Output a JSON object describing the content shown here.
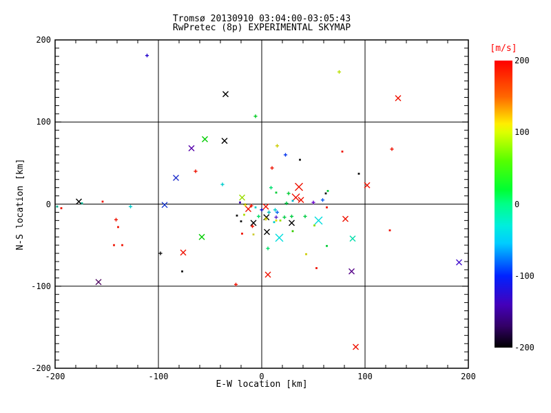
{
  "title": {
    "line1": "Tromsø 20130910 03:04:00-03:05:43",
    "line2": "RwPretec (8p) EXPERIMENTAL SKYMAP"
  },
  "axes": {
    "xlabel": "E-W location [km]",
    "ylabel": "N-S location [km]",
    "xticks": [
      {
        "v": -200,
        "label": "-200"
      },
      {
        "v": -100,
        "label": "-100"
      },
      {
        "v": 0,
        "label": "0"
      },
      {
        "v": 100,
        "label": "100"
      },
      {
        "v": 200,
        "label": "200"
      }
    ],
    "yticks": [
      {
        "v": 200,
        "label": "200"
      },
      {
        "v": 100,
        "label": "100"
      },
      {
        "v": 0,
        "label": "0"
      },
      {
        "v": -100,
        "label": "-100"
      },
      {
        "v": -200,
        "label": "-200"
      }
    ]
  },
  "colorbar": {
    "label": "[m/s]",
    "label_color": "#ff0000",
    "min": -200,
    "max": 200,
    "ticks": [
      {
        "v": 200,
        "label": "200"
      },
      {
        "v": 100,
        "label": "100"
      },
      {
        "v": 0,
        "label": "0"
      },
      {
        "v": -100,
        "label": "-100"
      },
      {
        "v": -200,
        "label": "-200"
      }
    ],
    "gradient": [
      {
        "v": 200,
        "color": "#ff0000"
      },
      {
        "v": 150,
        "color": "#ff6600"
      },
      {
        "v": 112,
        "color": "#ffee00"
      },
      {
        "v": 100,
        "color": "#ddff00"
      },
      {
        "v": 60,
        "color": "#55ff00"
      },
      {
        "v": 20,
        "color": "#00ff33"
      },
      {
        "v": 0,
        "color": "#00ff88"
      },
      {
        "v": -30,
        "color": "#00eedd"
      },
      {
        "v": -55,
        "color": "#00ccff"
      },
      {
        "v": -100,
        "color": "#0022ff"
      },
      {
        "v": -140,
        "color": "#4400bb"
      },
      {
        "v": -170,
        "color": "#330066"
      },
      {
        "v": -200,
        "color": "#000000"
      }
    ]
  },
  "chart_data": {
    "type": "scatter",
    "title": "Tromsø 20130910 03:04:00-03:05:43",
    "subtitle": "RwPretec (8p) EXPERIMENTAL SKYMAP",
    "xlabel": "E-W location [km]",
    "ylabel": "N-S location [km]",
    "xlim": [
      -200,
      200
    ],
    "ylim": [
      -200,
      200
    ],
    "grid_major_lines": [
      -100,
      0,
      100
    ],
    "colorbar_label": "[m/s]",
    "colorbar_range": [
      -200,
      200
    ],
    "point_format": [
      "x_km",
      "y_km",
      "marker(X=big cross,x=cross,+=plus,.=dot)",
      "color",
      "velocity_m_s"
    ],
    "points": [
      [
        -111,
        181,
        "+",
        "#2200cc",
        -130
      ],
      [
        132,
        129,
        "x",
        "#ee1100",
        190
      ],
      [
        75,
        161,
        "+",
        "#b8e000",
        90
      ],
      [
        -35,
        134,
        "x",
        "#000000",
        -200
      ],
      [
        -6,
        107,
        "+",
        "#00cc22",
        40
      ],
      [
        -55,
        79,
        "x",
        "#00cc00",
        45
      ],
      [
        -36,
        77,
        "x",
        "#000000",
        -200
      ],
      [
        -68,
        68,
        "x",
        "#5500aa",
        -150
      ],
      [
        15,
        71,
        "+",
        "#cccc00",
        100
      ],
      [
        -64,
        40,
        "+",
        "#ee1100",
        190
      ],
      [
        -83,
        32,
        "x",
        "#2233cc",
        -110
      ],
      [
        78,
        64,
        ".",
        "#ee1100",
        190
      ],
      [
        126,
        67,
        "+",
        "#ee1100",
        190
      ],
      [
        94,
        37,
        ".",
        "#111111",
        -195
      ],
      [
        102,
        23,
        "x",
        "#ee1100",
        190
      ],
      [
        23,
        60,
        "+",
        "#0033ee",
        -110
      ],
      [
        37,
        54,
        ".",
        "#111111",
        -195
      ],
      [
        10,
        44,
        "+",
        "#ee1100",
        190
      ],
      [
        36,
        21,
        "X",
        "#ee1100",
        190
      ],
      [
        -38,
        24,
        "+",
        "#00cccc",
        -40
      ],
      [
        62,
        13,
        ".",
        "#111111",
        -195
      ],
      [
        64,
        16,
        ".",
        "#00cc33",
        30
      ],
      [
        -19,
        8,
        "x",
        "#99dd00",
        80
      ],
      [
        -21,
        2,
        ".",
        "#3300aa",
        -150
      ],
      [
        -16,
        -1,
        "+",
        "#dddd00",
        100
      ],
      [
        -10,
        -2,
        "+",
        "#ee1100",
        190
      ],
      [
        -13,
        -6,
        "x",
        "#ee1100",
        190
      ],
      [
        9,
        20,
        "+",
        "#00e070",
        15
      ],
      [
        14,
        14,
        ".",
        "#00cc33",
        30
      ],
      [
        26,
        13,
        "+",
        "#00cc33",
        30
      ],
      [
        33,
        8,
        "X",
        "#ee1100",
        190
      ],
      [
        38,
        5,
        "x",
        "#ee1100",
        190
      ],
      [
        30,
        4,
        ".",
        "#00bbcc",
        -35
      ],
      [
        24,
        1,
        "+",
        "#00cc44",
        25
      ],
      [
        50,
        2,
        "+",
        "#6600cc",
        -155
      ],
      [
        59,
        5,
        "+",
        "#0055ee",
        -95
      ],
      [
        63,
        -4,
        ".",
        "#ee1100",
        190
      ],
      [
        4,
        -3,
        "x",
        "#ee1100",
        190
      ],
      [
        0,
        -7,
        "+",
        "#0000bb",
        -140
      ],
      [
        13,
        -7,
        "+",
        "#00cccc",
        -40
      ],
      [
        -6,
        -4,
        ".",
        "#00cccc",
        -40
      ],
      [
        7,
        -10,
        "+",
        "#00bbbb",
        -45
      ],
      [
        15,
        -10,
        "+",
        "#0066ee",
        -90
      ],
      [
        -3,
        -15,
        "+",
        "#00dd66",
        15
      ],
      [
        4.5,
        -16,
        "x",
        "#000000",
        -200
      ],
      [
        4,
        -18,
        "+",
        "#cccc00",
        100
      ],
      [
        14,
        -16,
        "+",
        "#5522cc",
        -145
      ],
      [
        22,
        -16,
        "+",
        "#00cc44",
        25
      ],
      [
        29,
        -15,
        "+",
        "#00cc44",
        25
      ],
      [
        42,
        -15,
        "+",
        "#00cc44",
        25
      ],
      [
        -24,
        -14,
        ".",
        "#111111",
        -195
      ],
      [
        -20,
        -21,
        ".",
        "#111111",
        -195
      ],
      [
        -17,
        -13,
        ".",
        "#aadd00",
        75
      ],
      [
        12,
        -22,
        ".",
        "#00cccc",
        -40
      ],
      [
        -8,
        -23,
        "x",
        "#000000",
        -200
      ],
      [
        -9,
        -27,
        "+",
        "#ee1100",
        190
      ],
      [
        29,
        -23,
        "x",
        "#000000",
        -200
      ],
      [
        55,
        -20,
        "X",
        "#00dddd",
        -35
      ],
      [
        51,
        -26,
        ".",
        "#88dd00",
        80
      ],
      [
        14,
        -20,
        ".",
        "#dddd00",
        100
      ],
      [
        18,
        -20,
        ".",
        "#99dd00",
        80
      ],
      [
        -19,
        -36,
        ".",
        "#ee1100",
        190
      ],
      [
        -8,
        -37,
        ".",
        "#cccc33",
        100
      ],
      [
        5,
        -34,
        "x",
        "#000000",
        -200
      ],
      [
        30,
        -33,
        ".",
        "#33cc00",
        40
      ],
      [
        17,
        -41,
        "X",
        "#00dddd",
        -35
      ],
      [
        -58,
        -40,
        "x",
        "#00cc00",
        45
      ],
      [
        6,
        -54,
        "+",
        "#00dd66",
        15
      ],
      [
        43,
        -61,
        ".",
        "#cccc00",
        100
      ],
      [
        63,
        -51,
        ".",
        "#00cc33",
        30
      ],
      [
        81,
        -18,
        "x",
        "#ee1100",
        190
      ],
      [
        88,
        -42,
        "x",
        "#00ddaa",
        -15
      ],
      [
        124,
        -32,
        ".",
        "#ee1100",
        190
      ],
      [
        -177,
        3,
        "x",
        "#000000",
        -200
      ],
      [
        -174,
        1,
        ".",
        "#00bb99",
        -5
      ],
      [
        -154,
        3,
        ".",
        "#ee1100",
        190
      ],
      [
        -198,
        -3,
        ".",
        "#00aa88",
        -5
      ],
      [
        -194,
        -5,
        ".",
        "#ee1100",
        190
      ],
      [
        -127,
        -3,
        "+",
        "#00cccc",
        -40
      ],
      [
        -94,
        -1,
        "x",
        "#1133cc",
        -120
      ],
      [
        -141,
        -19,
        "+",
        "#ee1100",
        190
      ],
      [
        -139,
        -28,
        ".",
        "#ee1100",
        190
      ],
      [
        -143,
        -50,
        ".",
        "#ee1100",
        190
      ],
      [
        -135,
        -50,
        ".",
        "#ee1100",
        190
      ],
      [
        -98,
        -60,
        "+",
        "#111111",
        -195
      ],
      [
        -76,
        -59,
        "x",
        "#ee1100",
        190
      ],
      [
        -158,
        -95,
        "x",
        "#551166",
        -165
      ],
      [
        -77,
        -82,
        ".",
        "#111111",
        -195
      ],
      [
        -25,
        -98,
        "+",
        "#ee1100",
        190
      ],
      [
        6,
        -86,
        "x",
        "#ee1100",
        190
      ],
      [
        53,
        -78,
        ".",
        "#ee1100",
        190
      ],
      [
        87,
        -82,
        "x",
        "#550088",
        -160
      ],
      [
        191,
        -71,
        "x",
        "#4411cc",
        -130
      ],
      [
        91,
        -174,
        "x",
        "#ee1100",
        190
      ]
    ]
  }
}
